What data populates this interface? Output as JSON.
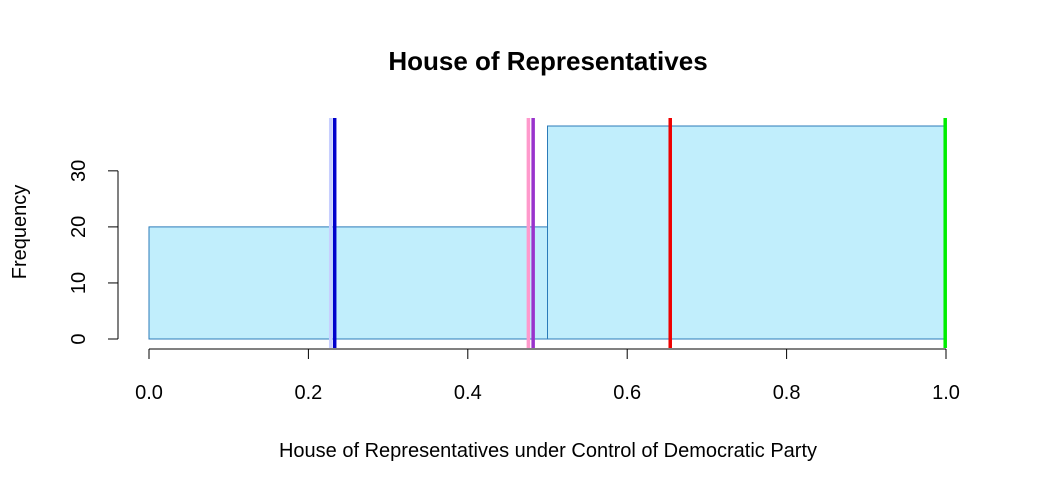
{
  "chart_data": {
    "type": "bar",
    "title": "House of Representatives",
    "xlabel": "House of Representatives under Control of Democratic Party",
    "ylabel": "Frequency",
    "xlim": [
      0,
      1
    ],
    "ylim": [
      0,
      38
    ],
    "x_ticks": [
      "0.0",
      "0.2",
      "0.4",
      "0.6",
      "0.8",
      "1.0"
    ],
    "y_ticks": [
      "0",
      "10",
      "20",
      "30"
    ],
    "bins": [
      {
        "start": 0.0,
        "end": 0.5,
        "count": 20
      },
      {
        "start": 0.5,
        "end": 1.0,
        "count": 38
      }
    ],
    "bar_fill": "#c1eefc",
    "bar_stroke": "#2b7bb9",
    "grid": false,
    "vlines": [
      {
        "x": 0.228,
        "color": "#c8cfff"
      },
      {
        "x": 0.233,
        "color": "#0000cc"
      },
      {
        "x": 0.476,
        "color": "#ff99cc"
      },
      {
        "x": 0.482,
        "color": "#9933cc"
      },
      {
        "x": 0.654,
        "color": "#ee0000"
      },
      {
        "x": 0.999,
        "color": "#00ee00"
      }
    ]
  }
}
